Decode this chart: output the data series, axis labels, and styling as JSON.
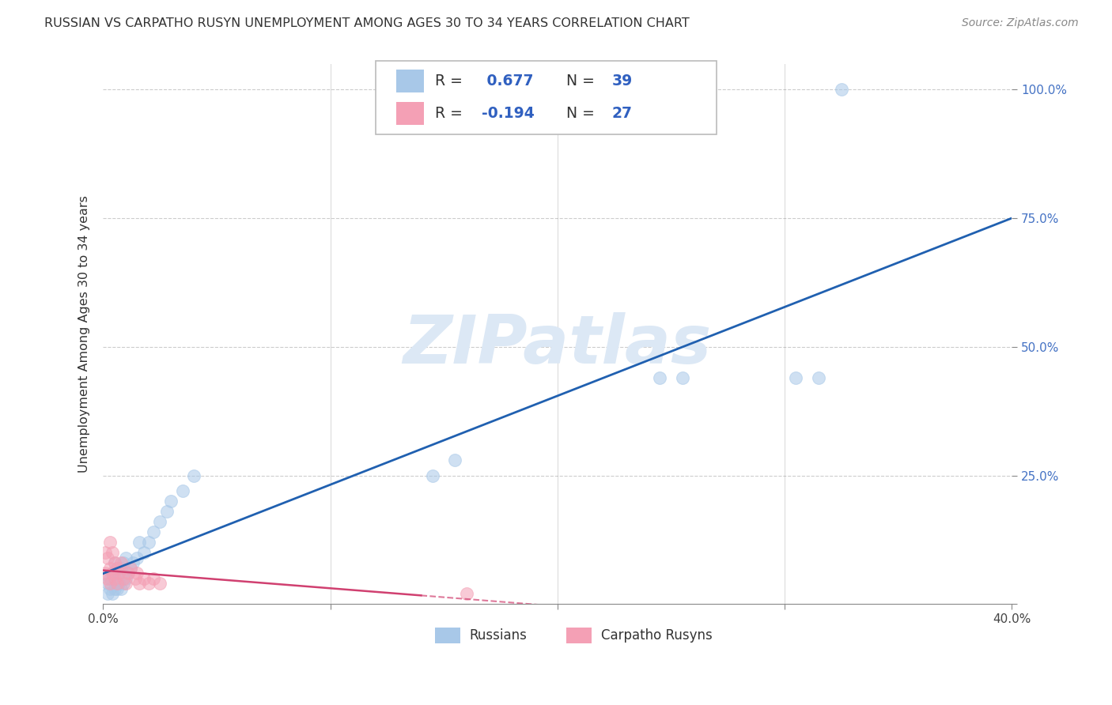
{
  "title": "RUSSIAN VS CARPATHO RUSYN UNEMPLOYMENT AMONG AGES 30 TO 34 YEARS CORRELATION CHART",
  "source": "Source: ZipAtlas.com",
  "ylabel": "Unemployment Among Ages 30 to 34 years",
  "xlim": [
    0.0,
    0.4
  ],
  "ylim": [
    0.0,
    1.05
  ],
  "xticks": [
    0.0,
    0.1,
    0.2,
    0.3,
    0.4
  ],
  "xtick_labels": [
    "0.0%",
    "",
    "",
    "",
    "40.0%"
  ],
  "yticks": [
    0.0,
    0.25,
    0.5,
    0.75,
    1.0
  ],
  "ytick_labels_right": [
    "",
    "25.0%",
    "50.0%",
    "75.0%",
    "100.0%"
  ],
  "legend_R1": "R = ",
  "legend_V1": "0.677",
  "legend_N1label": "N = ",
  "legend_N1": "39",
  "legend_R2": "R = ",
  "legend_V2": "-0.194",
  "legend_N2label": "N = ",
  "legend_N2": "27",
  "legend_label1": "Russians",
  "legend_label2": "Carpatho Rusyns",
  "blue_color": "#a8c8e8",
  "pink_color": "#f4a0b5",
  "blue_line_color": "#2060b0",
  "pink_line_color": "#d04070",
  "watermark_color": "#dce8f5",
  "russians_x": [
    0.002,
    0.002,
    0.003,
    0.003,
    0.004,
    0.004,
    0.005,
    0.005,
    0.005,
    0.006,
    0.006,
    0.007,
    0.007,
    0.008,
    0.008,
    0.009,
    0.009,
    0.01,
    0.01,
    0.011,
    0.012,
    0.013,
    0.015,
    0.016,
    0.018,
    0.02,
    0.022,
    0.025,
    0.028,
    0.03,
    0.035,
    0.04,
    0.145,
    0.155,
    0.245,
    0.255,
    0.305,
    0.315,
    0.325
  ],
  "russians_y": [
    0.02,
    0.04,
    0.03,
    0.05,
    0.02,
    0.06,
    0.03,
    0.05,
    0.08,
    0.03,
    0.07,
    0.04,
    0.06,
    0.03,
    0.07,
    0.04,
    0.08,
    0.05,
    0.09,
    0.06,
    0.07,
    0.08,
    0.09,
    0.12,
    0.1,
    0.12,
    0.14,
    0.16,
    0.18,
    0.2,
    0.22,
    0.25,
    0.25,
    0.28,
    0.44,
    0.44,
    0.44,
    0.44,
    1.0
  ],
  "rusyns_x": [
    0.001,
    0.001,
    0.002,
    0.002,
    0.003,
    0.003,
    0.003,
    0.004,
    0.004,
    0.005,
    0.005,
    0.006,
    0.006,
    0.007,
    0.008,
    0.009,
    0.01,
    0.011,
    0.012,
    0.014,
    0.015,
    0.016,
    0.018,
    0.02,
    0.022,
    0.025,
    0.16
  ],
  "rusyns_y": [
    0.06,
    0.1,
    0.05,
    0.09,
    0.04,
    0.07,
    0.12,
    0.06,
    0.1,
    0.05,
    0.08,
    0.04,
    0.07,
    0.06,
    0.08,
    0.05,
    0.04,
    0.06,
    0.07,
    0.05,
    0.06,
    0.04,
    0.05,
    0.04,
    0.05,
    0.04,
    0.02
  ]
}
